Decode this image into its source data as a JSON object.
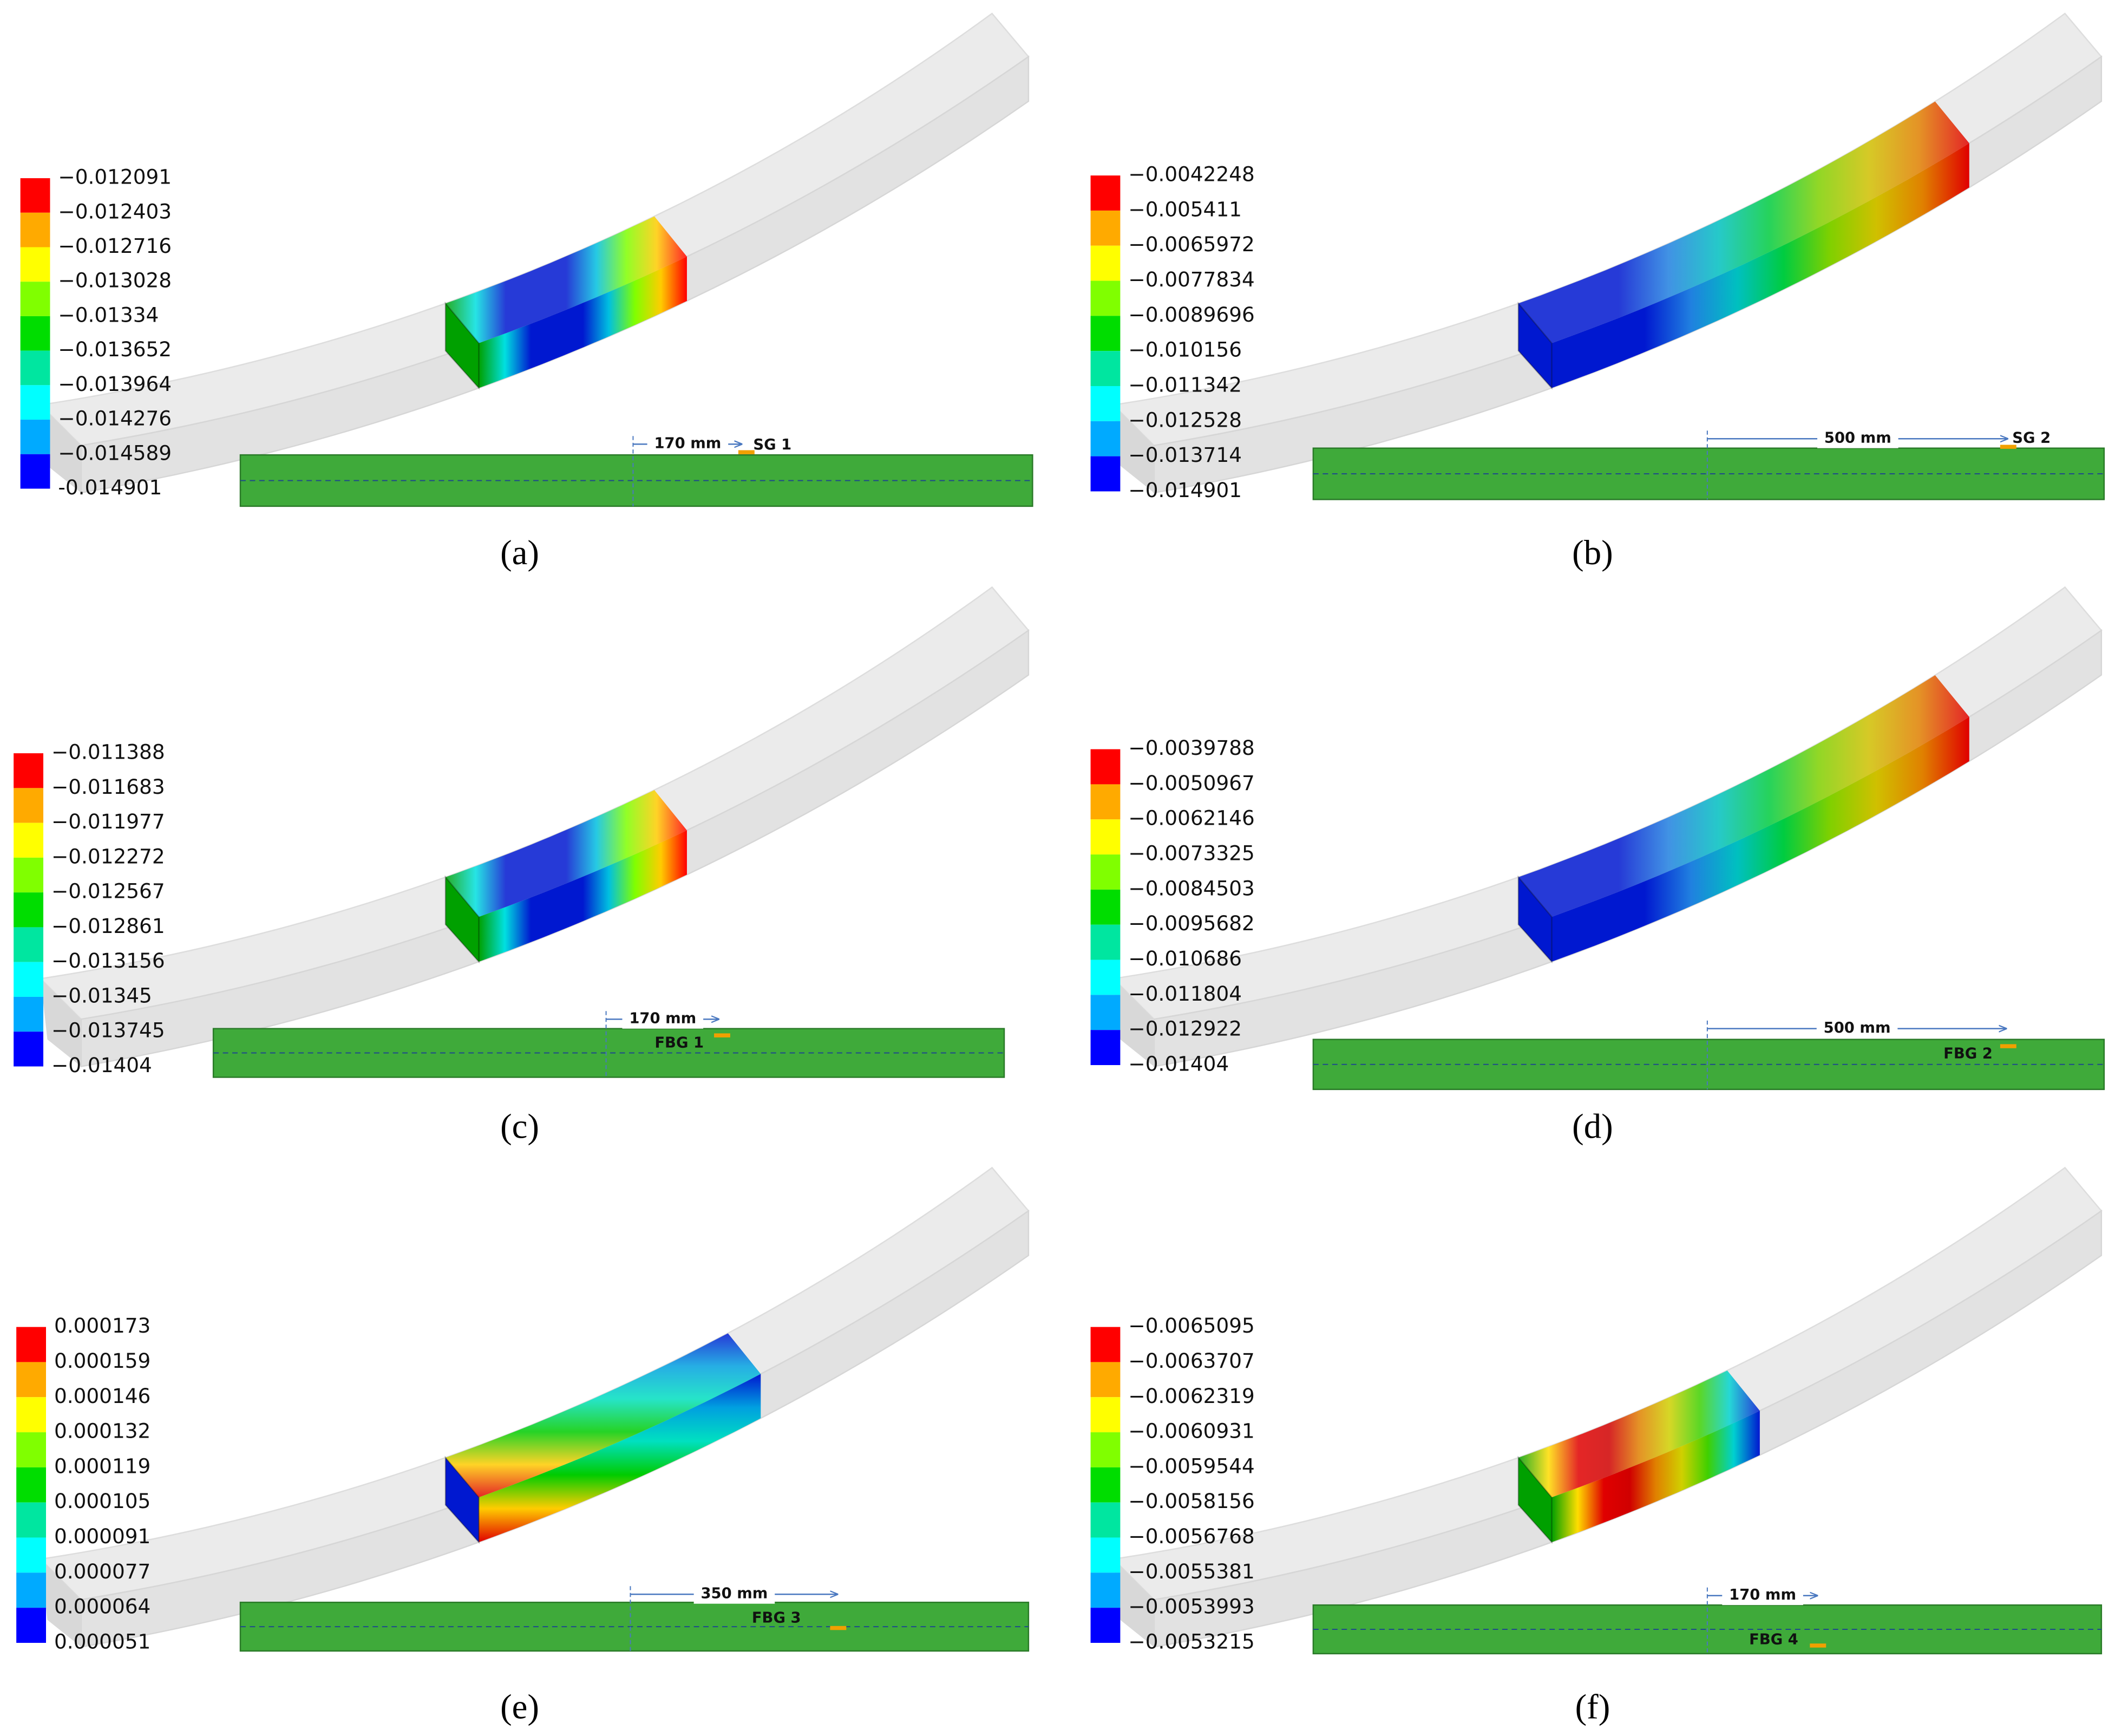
{
  "panels": [
    {
      "legend": [
        "−0.012091",
        "−0.012403",
        "−0.012716",
        "−0.013028",
        "−0.01334",
        "−0.013652",
        "−0.013964",
        "−0.014276",
        "−0.014589",
        "-0.014901"
      ],
      "dimension": "170 mm",
      "sensor": "SG 1",
      "caption": "(a)"
    },
    {
      "legend": [
        "−0.0042248",
        "−0.005411",
        "−0.0065972",
        "−0.0077834",
        "−0.0089696",
        "−0.010156",
        "−0.011342",
        "−0.012528",
        "−0.013714",
        "−0.014901"
      ],
      "dimension": "500 mm",
      "sensor": "SG 2",
      "caption": "(b)"
    },
    {
      "legend": [
        "−0.011388",
        "−0.011683",
        "−0.011977",
        "−0.012272",
        "−0.012567",
        "−0.012861",
        "−0.013156",
        "−0.01345",
        "−0.013745",
        "−0.01404"
      ],
      "dimension": "170 mm",
      "sensor": "FBG 1",
      "caption": "(c)"
    },
    {
      "legend": [
        "−0.0039788",
        "−0.0050967",
        "−0.0062146",
        "−0.0073325",
        "−0.0084503",
        "−0.0095682",
        "−0.010686",
        "−0.011804",
        "−0.012922",
        "−0.01404"
      ],
      "dimension": "500 mm",
      "sensor": "FBG 2",
      "caption": "(d)"
    },
    {
      "legend": [
        "0.000173",
        "0.000159",
        "0.000146",
        "0.000132",
        "0.000119",
        "0.000105",
        "0.000091",
        "0.000077",
        "0.000064",
        "0.000051"
      ],
      "dimension": "350 mm",
      "sensor": "FBG 3",
      "caption": "(e)"
    },
    {
      "legend": [
        "−0.0065095",
        "−0.0063707",
        "−0.0062319",
        "−0.0060931",
        "−0.0059544",
        "−0.0058156",
        "−0.0056768",
        "−0.0055381",
        "−0.0053993",
        "−0.0053215"
      ],
      "dimension": "170 mm",
      "sensor": "FBG 4",
      "caption": "(f)"
    }
  ]
}
